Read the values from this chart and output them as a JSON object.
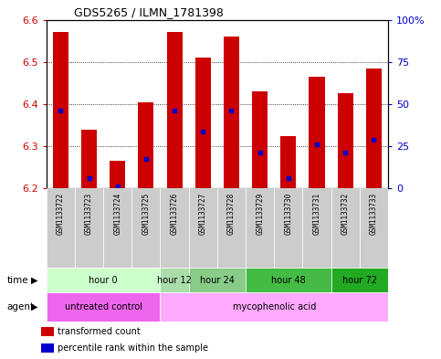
{
  "title": "GDS5265 / ILMN_1781398",
  "samples": [
    "GSM1133722",
    "GSM1133723",
    "GSM1133724",
    "GSM1133725",
    "GSM1133726",
    "GSM1133727",
    "GSM1133728",
    "GSM1133729",
    "GSM1133730",
    "GSM1133731",
    "GSM1133732",
    "GSM1133733"
  ],
  "bar_tops": [
    6.57,
    6.34,
    6.265,
    6.405,
    6.57,
    6.51,
    6.56,
    6.43,
    6.325,
    6.465,
    6.425,
    6.485
  ],
  "bar_bottom": 6.2,
  "blue_marker_y": [
    6.385,
    6.225,
    6.205,
    6.27,
    6.385,
    6.335,
    6.385,
    6.285,
    6.225,
    6.305,
    6.285,
    6.315
  ],
  "ylim": [
    6.2,
    6.6
  ],
  "yticks_left": [
    6.2,
    6.3,
    6.4,
    6.5,
    6.6
  ],
  "yticks_right": [
    0,
    25,
    50,
    75,
    100
  ],
  "ytick_right_labels": [
    "0",
    "25",
    "50",
    "75",
    "100%"
  ],
  "bar_color": "#cc0000",
  "blue_color": "#0000cc",
  "left_axis_color": "#cc0000",
  "right_axis_color": "#0000cc",
  "time_groups": [
    {
      "label": "hour 0",
      "start": 0,
      "end": 4,
      "color": "#ccffcc"
    },
    {
      "label": "hour 12",
      "start": 4,
      "end": 5,
      "color": "#aaddaa"
    },
    {
      "label": "hour 24",
      "start": 5,
      "end": 7,
      "color": "#88cc88"
    },
    {
      "label": "hour 48",
      "start": 7,
      "end": 10,
      "color": "#44bb44"
    },
    {
      "label": "hour 72",
      "start": 10,
      "end": 12,
      "color": "#22aa22"
    }
  ],
  "agent_groups": [
    {
      "label": "untreated control",
      "start": 0,
      "end": 4,
      "color": "#ee66ee"
    },
    {
      "label": "mycophenolic acid",
      "start": 4,
      "end": 12,
      "color": "#ffaaff"
    }
  ],
  "legend_items": [
    {
      "label": "transformed count",
      "color": "#cc0000",
      "marker": "s"
    },
    {
      "label": "percentile rank within the sample",
      "color": "#0000cc",
      "marker": "s"
    }
  ],
  "bar_width": 0.55,
  "n": 12
}
